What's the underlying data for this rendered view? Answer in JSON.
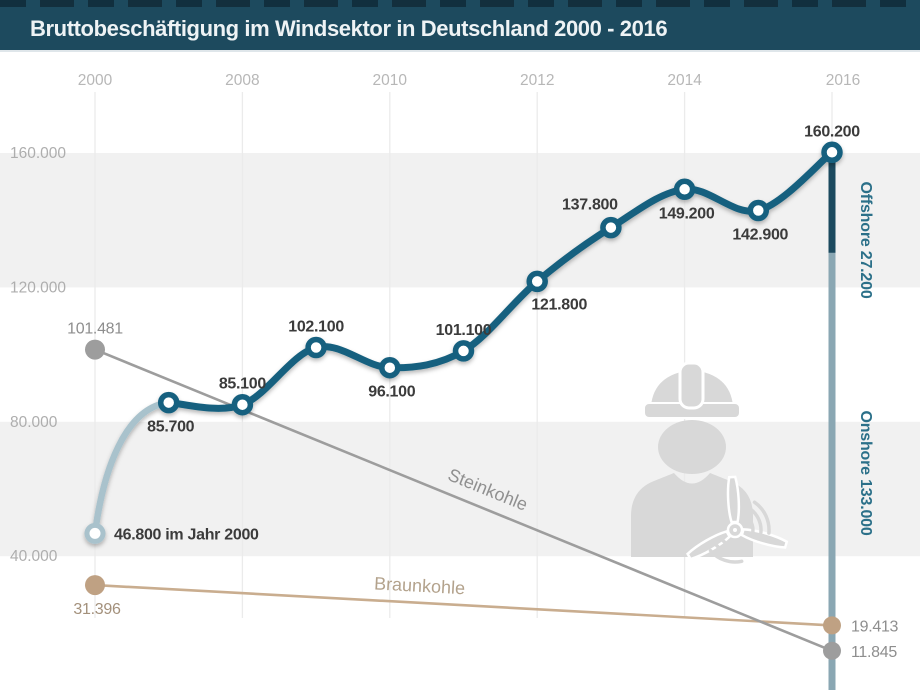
{
  "title_bar": {
    "title": "Bruttobeschäftigung im Windsektor in Deutschland 2000 - 2016"
  },
  "colors": {
    "title_bar_bg": "#1d4a5e",
    "title_text": "#eef3f5",
    "wind_line": "#17617f",
    "wind_first_segment": "#a9c2cc",
    "offshore_bar": "#1c4a5f",
    "onshore_bar": "#8aa7b3",
    "steinkohle": "#9d9d9d",
    "braunkohle": "#c9ad8f",
    "band_gray": "#f1f1f1",
    "annotation_teal": "#2b7089",
    "watermark_gray": "#d8d8d8"
  },
  "watermark": {
    "icon": "construction-worker-with-wind-turbine"
  },
  "chart_data": {
    "type": "line",
    "title": "Bruttobeschäftigung im Windsektor in Deutschland 2000 - 2016",
    "x_axis": {
      "position": "top",
      "tick_labels": [
        "2000",
        "2008",
        "2010",
        "2012",
        "2014",
        "2016"
      ],
      "tick_years": [
        2000,
        2008,
        2010,
        2012,
        2014,
        2016
      ],
      "note": "non-linear axis: 2000, 2004, then yearly 2008-2016"
    },
    "y_axis": {
      "tick_labels": [
        "160.000",
        "120.000",
        "80.000",
        "40.000"
      ],
      "tick_values": [
        160000,
        120000,
        80000,
        40000
      ],
      "ylim": [
        0,
        175000
      ],
      "gray_bands": [
        [
          160000,
          120000
        ],
        [
          80000,
          40000
        ]
      ],
      "grid": "vertical-only"
    },
    "series": [
      {
        "name": "Windsektor",
        "style": "smooth-line-open-markers",
        "points": [
          {
            "year": 2000,
            "value": 46800,
            "label": "46.800 im Jahr 2000",
            "label_pos": "right"
          },
          {
            "year": 2004,
            "value": 85700,
            "label": "85.700",
            "label_pos": "below"
          },
          {
            "year": 2008,
            "value": 85100,
            "label": "85.100",
            "label_pos": "above"
          },
          {
            "year": 2009,
            "value": 102100,
            "label": "102.100",
            "label_pos": "above"
          },
          {
            "year": 2010,
            "value": 96100,
            "label": "96.100",
            "label_pos": "below"
          },
          {
            "year": 2011,
            "value": 101100,
            "label": "101.100",
            "label_pos": "above"
          },
          {
            "year": 2012,
            "value": 121800,
            "label": "121.800",
            "label_pos": "below-right"
          },
          {
            "year": 2013,
            "value": 137800,
            "label": "137.800",
            "label_pos": "above-left"
          },
          {
            "year": 2014,
            "value": 149200,
            "label": "149.200",
            "label_pos": "below"
          },
          {
            "year": 2015,
            "value": 142900,
            "label": "142.900",
            "label_pos": "below"
          },
          {
            "year": 2016,
            "value": 160200,
            "label": "160.200",
            "label_pos": "above"
          }
        ]
      },
      {
        "name": "Steinkohle",
        "style": "thin-line-solid-dots",
        "points": [
          {
            "year": 2000,
            "value": 101481,
            "label": "101.481",
            "label_pos": "above"
          },
          {
            "year": 2016,
            "value": 11845,
            "label": "11.845",
            "label_pos": "right"
          }
        ]
      },
      {
        "name": "Braunkohle",
        "style": "thin-line-solid-dots",
        "points": [
          {
            "year": 2000,
            "value": 31396,
            "label": "31.396",
            "label_pos": "below"
          },
          {
            "year": 2016,
            "value": 19413,
            "label": "19.413",
            "label_pos": "right"
          }
        ]
      }
    ],
    "end_bar": {
      "year": 2016,
      "total": 160200,
      "segments": [
        {
          "name": "Offshore",
          "value": 27200,
          "label": "Offshore 27.200"
        },
        {
          "name": "Onshore",
          "value": 133000,
          "label": "Onshore 133.000"
        }
      ]
    }
  }
}
